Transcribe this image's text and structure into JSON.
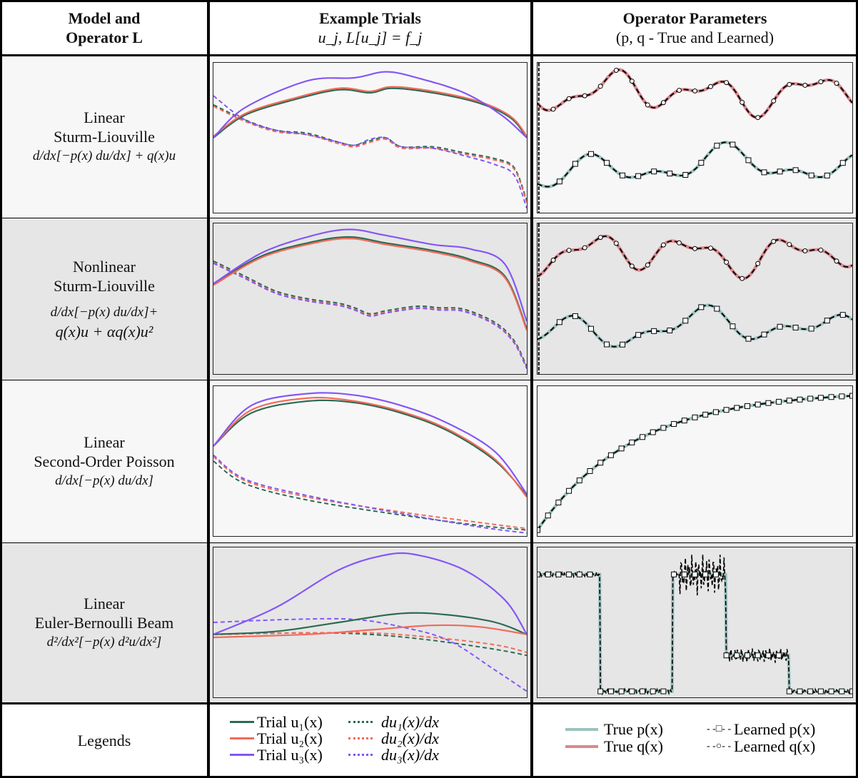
{
  "header": {
    "col1": [
      "Model and",
      "Operator L"
    ],
    "col2_title": "Example Trials",
    "col2_sub": "u_j, L[u_j] = f_j",
    "col3_title": "Operator Parameters",
    "col3_sub": "(p, q - True and Learned)"
  },
  "rows": [
    {
      "lines": [
        "Linear",
        "Sturm-Liouville",
        "d/dx[−p(x) du/dx] + q(x)u"
      ]
    },
    {
      "lines": [
        "Nonlinear",
        "Sturm-Liouville",
        "d/dx[−p(x) du/dx]+",
        "q(x)u + αq(x)u²"
      ]
    },
    {
      "lines": [
        "Linear",
        "Second-Order Poisson",
        "d/dx[−p(x) du/dx]"
      ]
    },
    {
      "lines": [
        "Linear",
        "Euler-Bernoulli Beam",
        "d²/dx²[−p(x) d²u/dx²]"
      ]
    }
  ],
  "legend": {
    "label": "Legends",
    "trials": [
      "Trial u₁(x)",
      "Trial u₂(x)",
      "Trial u₃(x)"
    ],
    "derivs": [
      "du₁(x)/dx",
      "du₂(x)/dx",
      "du₃(x)/dx"
    ],
    "true": [
      "True p(x)",
      "True q(x)"
    ],
    "learned": [
      "Learned p(x)",
      "Learned q(x)"
    ]
  },
  "colors": {
    "u1": "#2b6b53",
    "u2": "#f26a5a",
    "u3": "#8456f6",
    "true_p": "#9cc2bf",
    "true_q": "#d98a90",
    "learned": "#000000",
    "bg_light": "#f7f7f7",
    "bg_dark": "#e6e6e6"
  }
}
